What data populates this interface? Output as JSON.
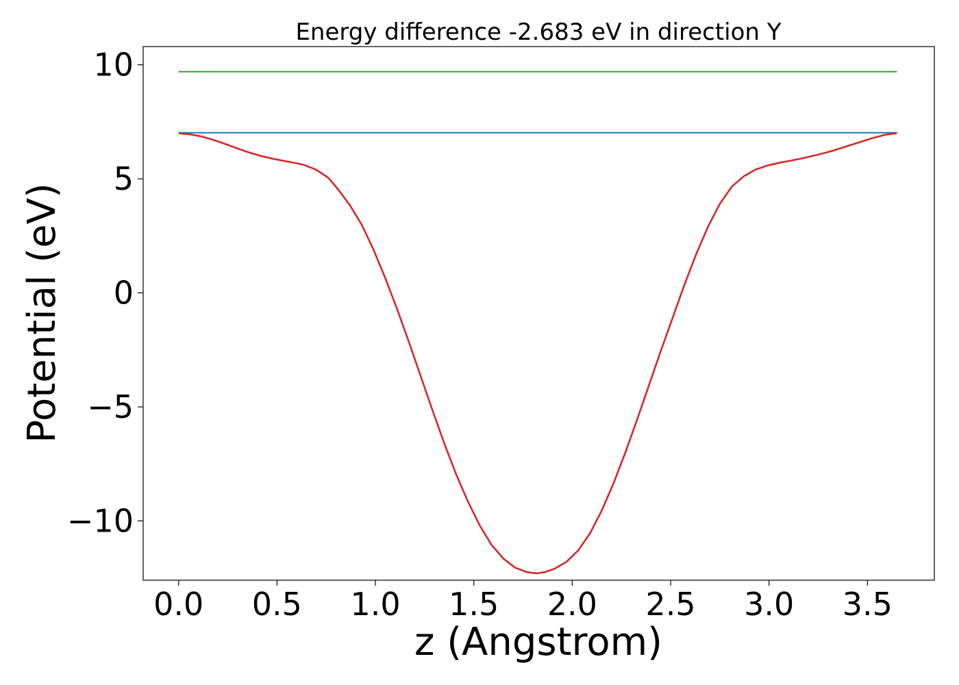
{
  "chart_data": {
    "type": "line",
    "title": "Energy difference -2.683 eV in direction Y",
    "xlabel": "z (Angstrom)",
    "ylabel": "Potential (eV)",
    "xlim": [
      -0.18,
      3.84
    ],
    "ylim": [
      -12.6,
      10.8
    ],
    "x_ticks": [
      0.0,
      0.5,
      1.0,
      1.5,
      2.0,
      2.5,
      3.0,
      3.5
    ],
    "x_tick_labels": [
      "0.0",
      "0.5",
      "1.0",
      "1.5",
      "2.0",
      "2.5",
      "3.0",
      "3.5"
    ],
    "y_ticks": [
      10,
      5,
      0,
      -5,
      -10
    ],
    "y_tick_labels": [
      "10",
      "5",
      "0",
      "−5",
      "−10"
    ],
    "grid": false,
    "series": [
      {
        "color": "#2ca02c",
        "x": [
          0.0,
          3.65
        ],
        "y": [
          9.7,
          9.7
        ]
      },
      {
        "color": "#1f77b4",
        "x": [
          0.0,
          3.65
        ],
        "y": [
          7.02,
          7.02
        ]
      },
      {
        "color": "#d62728",
        "x": [
          0.0,
          0.06,
          0.12,
          0.18,
          0.24,
          0.3,
          0.36,
          0.42,
          0.48,
          0.54,
          0.6,
          0.64,
          0.7,
          0.76,
          0.81,
          0.87,
          0.93,
          0.99,
          1.05,
          1.11,
          1.17,
          1.23,
          1.29,
          1.35,
          1.41,
          1.47,
          1.53,
          1.59,
          1.65,
          1.71,
          1.77,
          1.82,
          1.86,
          1.91,
          1.97,
          2.03,
          2.09,
          2.15,
          2.21,
          2.27,
          2.33,
          2.39,
          2.45,
          2.51,
          2.57,
          2.63,
          2.69,
          2.75,
          2.81,
          2.87,
          2.93,
          2.99,
          3.05,
          3.11,
          3.17,
          3.23,
          3.29,
          3.35,
          3.41,
          3.47,
          3.53,
          3.59,
          3.65
        ],
        "y": [
          7.0,
          6.95,
          6.85,
          6.7,
          6.52,
          6.33,
          6.15,
          6.0,
          5.88,
          5.78,
          5.68,
          5.6,
          5.4,
          5.05,
          4.55,
          3.85,
          3.0,
          1.9,
          0.65,
          -0.7,
          -2.15,
          -3.65,
          -5.15,
          -6.6,
          -7.95,
          -9.15,
          -10.2,
          -11.05,
          -11.65,
          -12.05,
          -12.25,
          -12.3,
          -12.25,
          -12.1,
          -11.8,
          -11.3,
          -10.55,
          -9.55,
          -8.35,
          -7.0,
          -5.55,
          -4.05,
          -2.55,
          -1.1,
          0.35,
          1.7,
          2.9,
          3.9,
          4.65,
          5.1,
          5.4,
          5.58,
          5.7,
          5.8,
          5.9,
          6.02,
          6.15,
          6.3,
          6.47,
          6.63,
          6.8,
          6.93,
          7.0
        ]
      }
    ]
  }
}
